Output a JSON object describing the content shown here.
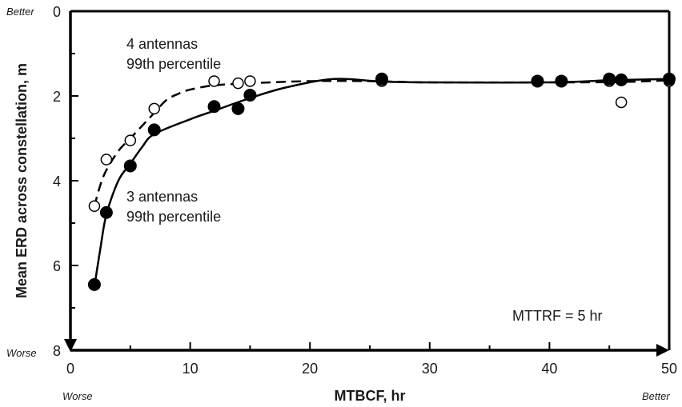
{
  "chart_data": {
    "type": "scatter",
    "xlabel": "MTBCF, hr",
    "ylabel": "Mean ERD across constellation, m",
    "xlim": [
      0,
      50
    ],
    "ylim": [
      0,
      8
    ],
    "y_inverted": true,
    "x_ticks": [
      0,
      10,
      20,
      30,
      40,
      50
    ],
    "y_ticks": [
      0,
      2,
      4,
      6,
      8
    ],
    "grid": false,
    "y_top_label": "Better",
    "y_bottom_label": "Worse",
    "x_left_label": "Worse",
    "x_right_label": "Better",
    "annotation": "MTTRF = 5 hr",
    "series": [
      {
        "label_lines": [
          "4 antennas",
          "99th percentile"
        ],
        "marker": "open-circle",
        "line_style": "dashed",
        "points": [
          [
            2,
            4.6
          ],
          [
            3,
            3.5
          ],
          [
            5,
            3.05
          ],
          [
            7,
            2.3
          ],
          [
            12,
            1.65
          ],
          [
            14,
            1.7
          ],
          [
            15,
            1.65
          ],
          [
            26,
            1.65
          ],
          [
            39,
            1.65
          ],
          [
            41,
            1.65
          ],
          [
            45,
            1.65
          ],
          [
            46,
            2.15
          ],
          [
            50,
            1.65
          ]
        ],
        "curve": [
          [
            2,
            4.6
          ],
          [
            2.5,
            4.1
          ],
          [
            3,
            3.75
          ],
          [
            4,
            3.3
          ],
          [
            5,
            3.0
          ],
          [
            6,
            2.7
          ],
          [
            7,
            2.4
          ],
          [
            8,
            2.1
          ],
          [
            9,
            1.95
          ],
          [
            10,
            1.85
          ],
          [
            12,
            1.75
          ],
          [
            15,
            1.7
          ],
          [
            20,
            1.65
          ],
          [
            25,
            1.65
          ],
          [
            30,
            1.68
          ],
          [
            40,
            1.68
          ],
          [
            46,
            1.67
          ],
          [
            50,
            1.63
          ]
        ]
      },
      {
        "label_lines": [
          "3 antennas",
          "99th percentile"
        ],
        "marker": "filled-circle",
        "line_style": "solid",
        "points": [
          [
            2,
            6.45
          ],
          [
            3,
            4.75
          ],
          [
            5,
            3.65
          ],
          [
            7,
            2.8
          ],
          [
            12,
            2.25
          ],
          [
            14,
            2.3
          ],
          [
            15,
            1.98
          ],
          [
            26,
            1.6
          ],
          [
            39,
            1.65
          ],
          [
            41,
            1.65
          ],
          [
            45,
            1.6
          ],
          [
            46,
            1.62
          ],
          [
            50,
            1.6
          ]
        ],
        "curve": [
          [
            2,
            6.5
          ],
          [
            2.5,
            5.6
          ],
          [
            3,
            4.8
          ],
          [
            4,
            4.0
          ],
          [
            5,
            3.6
          ],
          [
            6,
            3.2
          ],
          [
            7,
            2.9
          ],
          [
            10,
            2.55
          ],
          [
            12,
            2.35
          ],
          [
            15,
            2.05
          ],
          [
            18,
            1.8
          ],
          [
            22,
            1.6
          ],
          [
            26,
            1.66
          ],
          [
            30,
            1.68
          ],
          [
            40,
            1.68
          ],
          [
            45,
            1.63
          ],
          [
            50,
            1.6
          ]
        ]
      }
    ]
  }
}
